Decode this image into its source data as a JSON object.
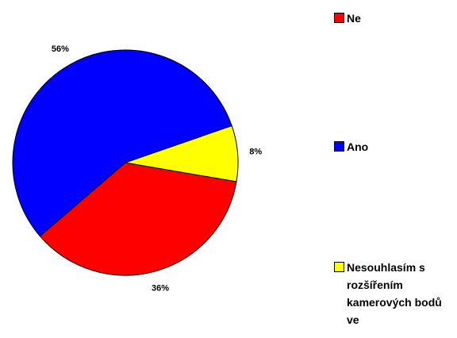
{
  "chart_data": {
    "type": "pie",
    "categories": [
      "Ne",
      "Ano",
      "Nesouhlasím s rozšířením kamerových bodů ve"
    ],
    "values": [
      36,
      56,
      8
    ],
    "value_labels": [
      "36%",
      "56%",
      "8%"
    ],
    "colors": [
      "#ff0000",
      "#0000ff",
      "#ffff00"
    ],
    "legend": "right"
  }
}
